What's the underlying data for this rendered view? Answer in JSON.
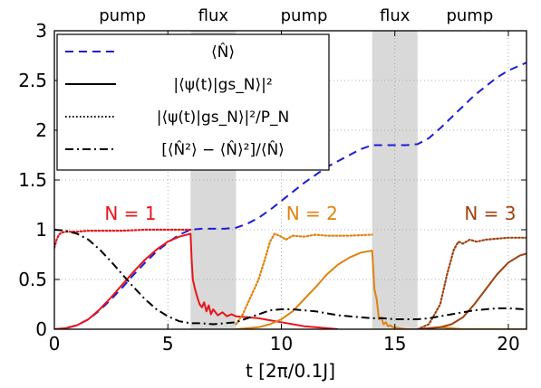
{
  "chart_data": {
    "type": "line",
    "xlabel": "t [2π/0.1J]",
    "ylabel": "",
    "xlim": [
      0,
      20.8
    ],
    "ylim": [
      0,
      3
    ],
    "x_ticks": [
      0,
      5,
      10,
      15,
      20
    ],
    "y_ticks": [
      0,
      0.5,
      1,
      1.5,
      2,
      2.5,
      3
    ],
    "x_tick_labels": [
      "0",
      "5",
      "10",
      "15",
      "20"
    ],
    "y_tick_labels": [
      "0",
      "0.5",
      "1",
      "1.5",
      "2",
      "2.5",
      "3"
    ],
    "grid": true,
    "legend_position": "top-left",
    "phase_labels": [
      {
        "label": "pump",
        "x": 3.0
      },
      {
        "label": "flux",
        "x": 7.0
      },
      {
        "label": "pump",
        "x": 11.0
      },
      {
        "label": "flux",
        "x": 15.0
      },
      {
        "label": "pump",
        "x": 18.3
      }
    ],
    "shaded_regions": [
      {
        "x_start": 6.0,
        "x_end": 8.0,
        "color": "#d9d9d9"
      },
      {
        "x_start": 14.0,
        "x_end": 16.0,
        "color": "#d9d9d9"
      }
    ],
    "annotations": [
      {
        "text": "N = 1",
        "x": 3.35,
        "y": 1.08,
        "color": "#e8141a"
      },
      {
        "text": "N = 2",
        "x": 11.35,
        "y": 1.08,
        "color": "#e0820e"
      },
      {
        "text": "N = 3",
        "x": 19.2,
        "y": 1.08,
        "color": "#a0420f"
      }
    ],
    "legend": [
      {
        "label": "⟨N̂⟩",
        "style": "dashed",
        "color": "#1c1cd8"
      },
      {
        "label": "|⟨ψ(t)|gs_N⟩|²",
        "style": "solid",
        "color": "#000000"
      },
      {
        "label": "|⟨ψ(t)|gs_N⟩|²/P_N",
        "style": "dotted",
        "color": "#000000"
      },
      {
        "label": "[⟨N̂²⟩ − ⟨N̂⟩²]/⟨N̂⟩",
        "style": "dashdot",
        "color": "#000000"
      }
    ],
    "series": [
      {
        "name": "⟨N̂⟩",
        "style": "dashed",
        "color": "#1c1cd8",
        "x": [
          0,
          0.5,
          1,
          1.5,
          2,
          2.5,
          3,
          3.5,
          4,
          4.5,
          5,
          5.5,
          6,
          6.5,
          7,
          7.5,
          8,
          8.5,
          9,
          9.5,
          10,
          10.5,
          11,
          11.5,
          12,
          12.5,
          13,
          13.5,
          14,
          14.5,
          15,
          15.5,
          16,
          16.5,
          17,
          17.5,
          18,
          18.5,
          19,
          19.5,
          20,
          20.8
        ],
        "y": [
          0,
          0.01,
          0.04,
          0.1,
          0.19,
          0.3,
          0.42,
          0.55,
          0.67,
          0.78,
          0.87,
          0.95,
          1.0,
          1.01,
          1.01,
          1.01,
          1.02,
          1.06,
          1.12,
          1.2,
          1.29,
          1.38,
          1.47,
          1.55,
          1.63,
          1.69,
          1.75,
          1.81,
          1.85,
          1.85,
          1.85,
          1.85,
          1.86,
          1.92,
          2.02,
          2.13,
          2.24,
          2.35,
          2.44,
          2.53,
          2.6,
          2.68
        ]
      },
      {
        "name": "N = 1 |⟨ψ(t)|gs_N⟩|²",
        "style": "solid",
        "color": "#e8141a",
        "x": [
          0,
          0.5,
          1,
          1.5,
          2,
          2.5,
          3,
          3.5,
          4,
          4.5,
          5,
          5.5,
          6.0,
          6.05,
          6.1,
          6.2,
          6.3,
          6.4,
          6.5,
          6.6,
          6.7,
          6.8,
          6.9,
          7.0,
          7.2,
          7.4,
          7.6,
          7.8,
          8.0,
          8.5,
          9,
          9.5,
          10,
          10.5,
          11,
          11.5,
          12,
          12.5
        ],
        "y": [
          0,
          0.01,
          0.04,
          0.1,
          0.2,
          0.32,
          0.45,
          0.58,
          0.7,
          0.8,
          0.88,
          0.93,
          0.96,
          0.7,
          0.5,
          0.4,
          0.32,
          0.25,
          0.22,
          0.27,
          0.18,
          0.24,
          0.15,
          0.2,
          0.14,
          0.17,
          0.13,
          0.15,
          0.13,
          0.12,
          0.11,
          0.09,
          0.07,
          0.05,
          0.03,
          0.02,
          0.01,
          0.0
        ]
      },
      {
        "name": "N = 1 |⟨ψ(t)|gs_N⟩|²/P_N",
        "style": "dotted",
        "color": "#e8141a",
        "x": [
          0,
          0.1,
          0.2,
          0.3,
          0.5,
          0.8,
          1.0,
          1.5,
          2,
          3,
          4,
          5,
          6
        ],
        "y": [
          0.82,
          0.9,
          0.95,
          0.97,
          0.98,
          0.98,
          0.98,
          0.99,
          0.99,
          0.99,
          1.0,
          1.0,
          1.0
        ]
      },
      {
        "name": "N = 2 |⟨ψ(t)|gs_N⟩|²",
        "style": "solid",
        "color": "#e0820e",
        "x": [
          8.0,
          8.5,
          9,
          9.5,
          10,
          10.5,
          11,
          11.5,
          12,
          12.5,
          13,
          13.5,
          14.0,
          14.05,
          14.1,
          14.2,
          14.3,
          14.4,
          14.5,
          14.6,
          14.7,
          14.8,
          14.9,
          15.0,
          15.2,
          15.5,
          16,
          17,
          18,
          19,
          20,
          20.8
        ],
        "y": [
          0.0,
          0.01,
          0.02,
          0.05,
          0.1,
          0.18,
          0.3,
          0.42,
          0.55,
          0.65,
          0.72,
          0.77,
          0.79,
          0.6,
          0.4,
          0.3,
          0.1,
          0.12,
          0.05,
          0.07,
          0.03,
          0.04,
          0.02,
          0.02,
          0.01,
          0.0,
          0.0,
          0.02,
          0.0,
          0.0,
          0.0,
          0.0
        ]
      },
      {
        "name": "N = 2 |⟨ψ(t)|gs_N⟩|²/P_N",
        "style": "dotted",
        "color": "#e0820e",
        "x": [
          8.0,
          8.3,
          8.6,
          9.0,
          9.3,
          9.5,
          9.7,
          10.0,
          10.2,
          10.5,
          11,
          11.5,
          12,
          13,
          14
        ],
        "y": [
          0.05,
          0.15,
          0.3,
          0.5,
          0.72,
          0.88,
          0.96,
          0.93,
          0.9,
          0.94,
          0.93,
          0.95,
          0.94,
          0.94,
          0.95
        ]
      },
      {
        "name": "N = 3 |⟨ψ(t)|gs_N⟩|²",
        "style": "solid",
        "color": "#a0420f",
        "x": [
          16.0,
          16.5,
          17,
          17.5,
          18,
          18.5,
          19,
          19.5,
          20,
          20.5,
          20.8
        ],
        "y": [
          0.0,
          0.01,
          0.02,
          0.05,
          0.12,
          0.25,
          0.4,
          0.55,
          0.67,
          0.74,
          0.76
        ]
      },
      {
        "name": "N = 3 |⟨ψ(t)|gs_N⟩|²/P_N",
        "style": "dotted",
        "color": "#a0420f",
        "x": [
          16.0,
          16.5,
          17,
          17.3,
          17.6,
          17.8,
          18.0,
          18.3,
          18.6,
          19,
          19.5,
          20,
          20.8
        ],
        "y": [
          0.0,
          0.05,
          0.25,
          0.55,
          0.8,
          0.88,
          0.86,
          0.9,
          0.88,
          0.9,
          0.91,
          0.92,
          0.92
        ]
      },
      {
        "name": "N = 1 [⟨N̂²⟩ − ⟨N̂⟩²]/⟨N̂⟩",
        "style": "dashdot",
        "color": "#000000",
        "x": [
          0,
          0.5,
          1,
          1.5,
          2,
          2.5,
          3,
          3.5,
          4,
          4.5,
          5,
          5.5,
          6,
          6.5,
          7,
          7.5,
          8,
          8.5,
          9,
          9.5,
          10,
          10.5,
          11,
          11.5,
          12,
          12.5,
          13,
          13.5,
          14,
          14.5,
          15,
          15.5,
          16,
          16.5,
          17,
          17.5,
          18,
          18.5,
          19,
          19.5,
          20,
          20.8
        ],
        "y": [
          1.0,
          0.99,
          0.96,
          0.9,
          0.8,
          0.68,
          0.55,
          0.42,
          0.3,
          0.2,
          0.13,
          0.08,
          0.06,
          0.06,
          0.05,
          0.06,
          0.07,
          0.11,
          0.15,
          0.19,
          0.2,
          0.2,
          0.19,
          0.18,
          0.16,
          0.14,
          0.13,
          0.12,
          0.11,
          0.11,
          0.1,
          0.1,
          0.1,
          0.11,
          0.13,
          0.15,
          0.17,
          0.19,
          0.2,
          0.21,
          0.21,
          0.2
        ]
      }
    ]
  }
}
